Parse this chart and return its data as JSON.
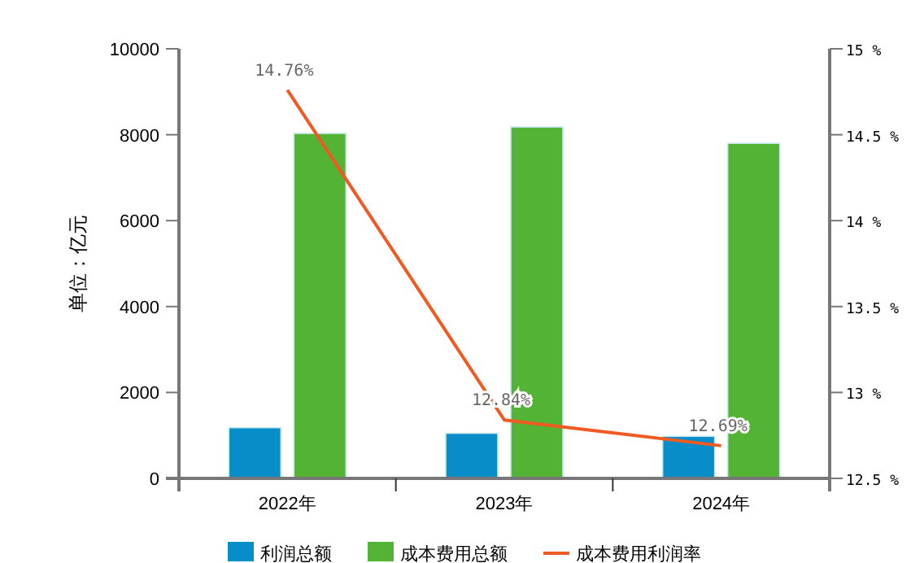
{
  "chart_data": {
    "type": "bar",
    "ylabel": "单位：亿元",
    "categories": [
      "2022年",
      "2023年",
      "2024年"
    ],
    "series": [
      {
        "name": "利润总额",
        "color": "#078dc8",
        "values": [
          1180,
          1050,
          980
        ]
      },
      {
        "name": "成本费用总额",
        "color": "#52b334",
        "values": [
          8030,
          8180,
          7800
        ]
      },
      {
        "name": "成本费用利润率",
        "type": "line",
        "axis": "y2",
        "color": "#f05a22",
        "values": [
          14.76,
          12.84,
          12.69
        ],
        "value_labels": [
          "14.76%",
          "12.84%",
          "12.69%"
        ]
      }
    ],
    "ylim": [
      0,
      10000
    ],
    "yticks": [
      0,
      2000,
      4000,
      6000,
      8000,
      10000
    ],
    "y2lim": [
      12.5,
      15
    ],
    "y2ticks": [
      {
        "value": 12.5,
        "label": "12.5 %"
      },
      {
        "value": 13,
        "label": "13 %"
      },
      {
        "value": 13.5,
        "label": "13.5 %"
      },
      {
        "value": 14,
        "label": "14 %"
      },
      {
        "value": 14.5,
        "label": "14.5 %"
      },
      {
        "value": 15,
        "label": "15 %"
      }
    ],
    "legend": "bottom",
    "grid": false
  }
}
